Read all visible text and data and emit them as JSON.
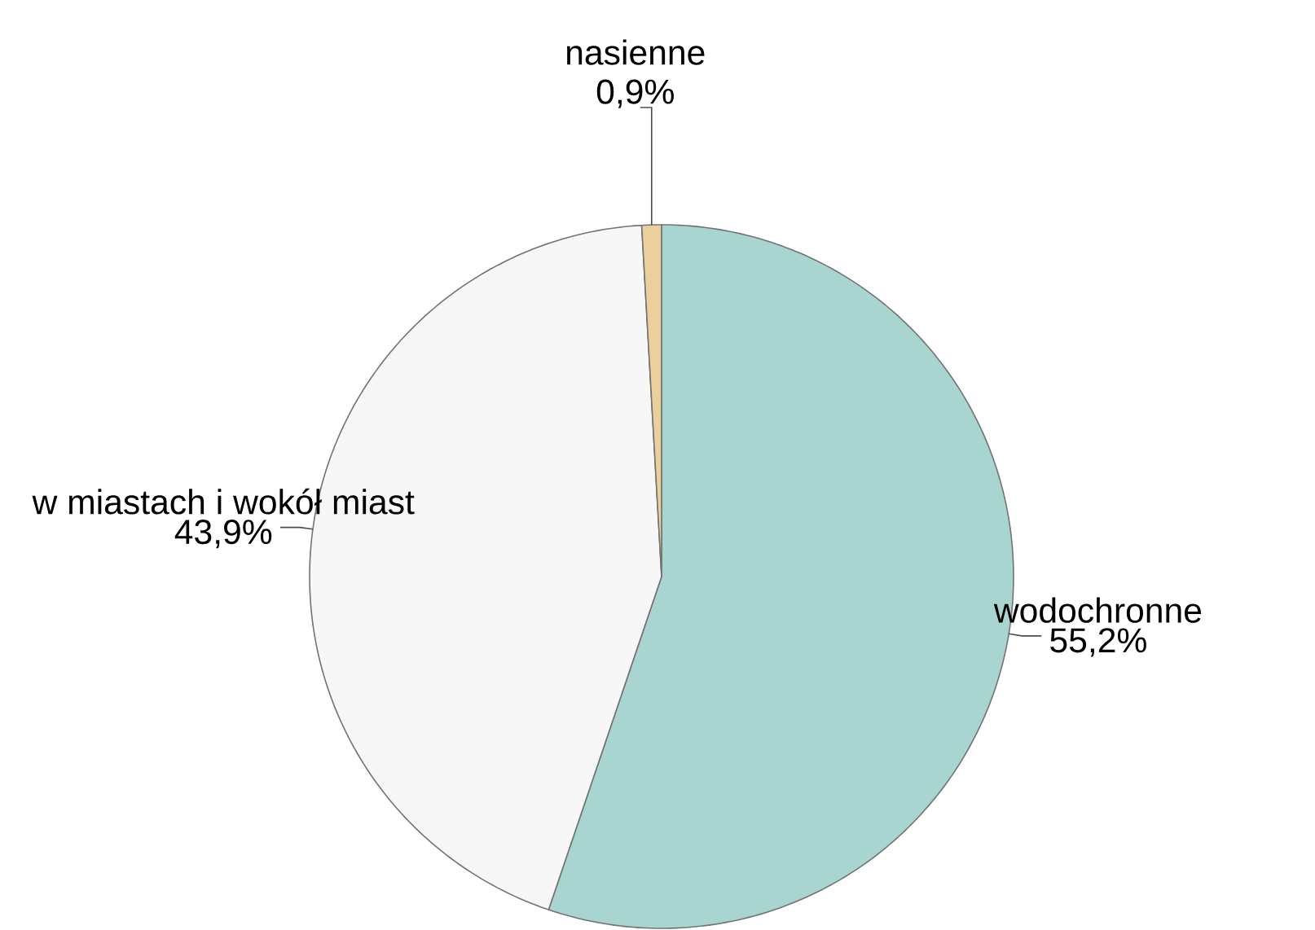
{
  "chart_data": {
    "type": "pie",
    "categories": [
      "wodochronne",
      "w miastach i wokół miast",
      "nasienne"
    ],
    "values": [
      55.2,
      43.9,
      0.9
    ],
    "value_labels": [
      "55,2%",
      "43,9%",
      "0,9%"
    ],
    "colors": [
      "#a8d5cf",
      "#f7f7f7",
      "#ebd09e"
    ]
  }
}
